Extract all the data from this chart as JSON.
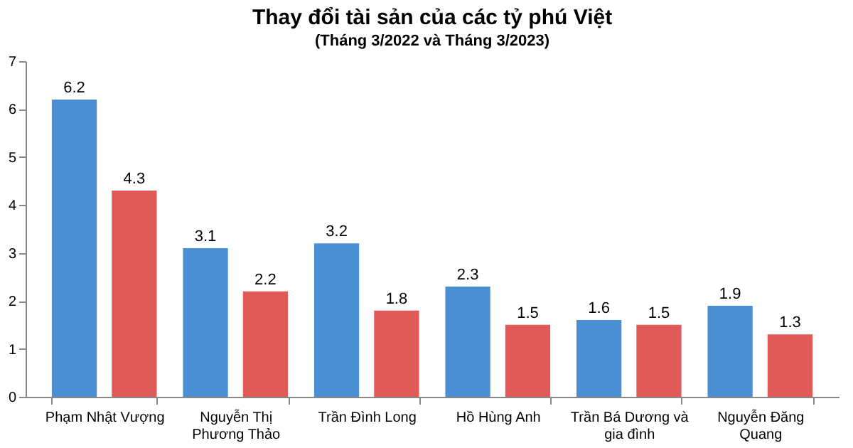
{
  "chart_data": {
    "type": "bar",
    "title": "Thay đổi tài sản của các tỷ phú Việt",
    "subtitle": "(Tháng 3/2022 và Tháng 3/2023)",
    "categories": [
      "Phạm Nhật Vượng",
      "Nguyễn Thị Phương Thảo",
      "Trần Đình Long",
      "Hồ Hùng Anh",
      "Trần Bá Dương và gia đình",
      "Nguyễn Đăng Quang"
    ],
    "series": [
      {
        "color": "#4a8fd4",
        "values": [
          6.2,
          3.1,
          3.2,
          2.3,
          1.6,
          1.9
        ]
      },
      {
        "color": "#e05a57",
        "values": [
          4.3,
          2.2,
          1.8,
          1.5,
          1.5,
          1.3
        ]
      }
    ],
    "ylim": [
      0,
      7
    ],
    "yticks": [
      0,
      1,
      2,
      3,
      4,
      5,
      6,
      7
    ],
    "grid": false,
    "legend": false,
    "data_labels": true
  }
}
